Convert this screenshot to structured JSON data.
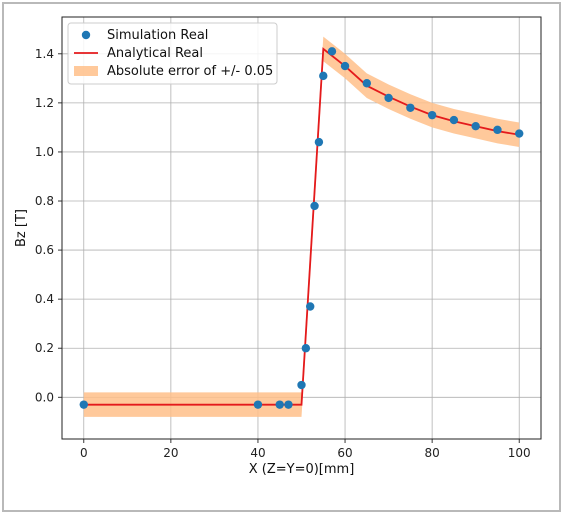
{
  "chart_data": {
    "type": "line",
    "xlabel": "X (Z=Y=0)[mm]",
    "ylabel": "Bz [T]",
    "xlim": [
      -5,
      105
    ],
    "ylim": [
      -0.17,
      1.55
    ],
    "x_ticks": [
      "0",
      "20",
      "40",
      "60",
      "80",
      "100"
    ],
    "y_ticks": [
      "0.0",
      "0.2",
      "0.4",
      "0.6",
      "0.8",
      "1.0",
      "1.2",
      "1.4"
    ],
    "grid": true,
    "legend_position": "top-left",
    "band_halfwidth": 0.05,
    "colors": {
      "scatter": "#1f77b4",
      "line": "#e41a1c",
      "band": "#ffc08a"
    },
    "series": [
      {
        "name": "Simulation Real",
        "type": "scatter",
        "x": [
          0,
          40,
          45,
          47,
          50,
          51,
          52,
          53,
          54,
          55,
          57,
          60,
          65,
          70,
          75,
          80,
          85,
          90,
          95,
          100
        ],
        "y": [
          -0.03,
          -0.03,
          -0.03,
          -0.03,
          0.05,
          0.2,
          0.37,
          0.78,
          1.04,
          1.31,
          1.41,
          1.35,
          1.28,
          1.22,
          1.18,
          1.15,
          1.13,
          1.105,
          1.09,
          1.075
        ]
      },
      {
        "name": "Analytical Real",
        "type": "line",
        "x": [
          0,
          50,
          55,
          60,
          65,
          70,
          75,
          80,
          85,
          90,
          95,
          100
        ],
        "y": [
          -0.03,
          -0.03,
          1.42,
          1.35,
          1.27,
          1.225,
          1.185,
          1.15,
          1.125,
          1.105,
          1.085,
          1.07
        ]
      },
      {
        "name": "Absolute error of +/- 0.05",
        "type": "band"
      }
    ]
  }
}
